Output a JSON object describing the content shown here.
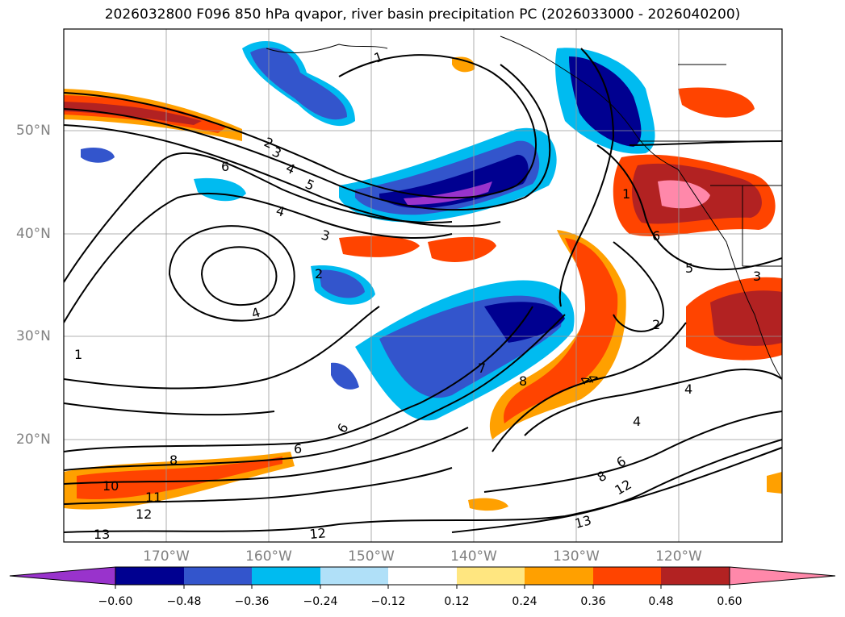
{
  "title": "2026032800 F096 850 hPa qvapor, river basin precipitation PC (2026033000 - 2026040200)",
  "lat_labels": [
    "50°N",
    "40°N",
    "30°N",
    "20°N"
  ],
  "lon_labels": [
    "170°W",
    "160°W",
    "150°W",
    "140°W",
    "130°W",
    "120°W"
  ],
  "contour_labels": [
    "1",
    "2",
    "3",
    "4",
    "5",
    "6",
    "4",
    "3",
    "4",
    "2",
    "1",
    "8",
    "6",
    "10",
    "11",
    "12",
    "13",
    "12",
    "13",
    "12",
    "8",
    "6",
    "4",
    "4",
    "2",
    "4",
    "4",
    "5",
    "1",
    "6",
    "3",
    "7",
    "8",
    "6"
  ],
  "colorbar": {
    "ticks": [
      "−0.60",
      "−0.48",
      "−0.36",
      "−0.24",
      "−0.12",
      "0.12",
      "0.24",
      "0.36",
      "0.48",
      "0.60"
    ],
    "colors": [
      "#9933cc",
      "#000090",
      "#3355cc",
      "#00bbf0",
      "#b0e0f8",
      "#ffffff",
      "#ffe680",
      "#ffa000",
      "#ff4400",
      "#b22222",
      "#ff88aa"
    ]
  }
}
